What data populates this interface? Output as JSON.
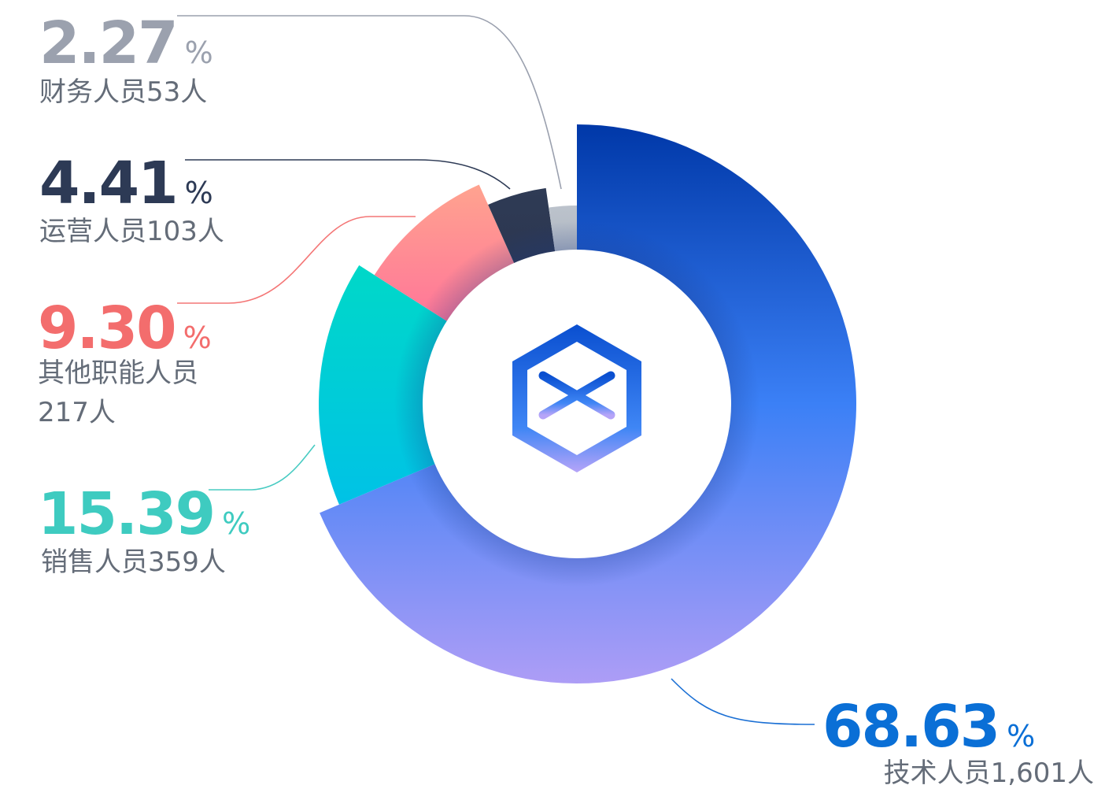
{
  "chart_data": {
    "type": "donut",
    "unit": "%",
    "values": [
      68.63,
      15.39,
      9.3,
      4.41,
      2.27
    ],
    "value_labels": [
      "68.63",
      "15.39",
      "9.30",
      "4.41",
      "2.27"
    ],
    "categories": [
      [
        "技术人员1,601人"
      ],
      [
        "销售人员359人"
      ],
      [
        "其他职能人员",
        "217人"
      ],
      [
        "运营人员103人"
      ],
      [
        "财务人员53人"
      ]
    ],
    "gradients": [
      [
        "#0038a8",
        "#3b80f6",
        "#ad9df6"
      ],
      [
        "#00d8c8",
        "#00c2e6"
      ],
      [
        "#ffa38f",
        "#ff7499"
      ],
      [
        "#2f3b55",
        "#2b3650"
      ],
      [
        "#bcc3cc",
        "#aeb5c0"
      ]
    ],
    "label_colors": [
      "#0a6fd6",
      "#3ecbc0",
      "#f36d6d",
      "#2d3a55",
      "#9ba1ae"
    ]
  }
}
